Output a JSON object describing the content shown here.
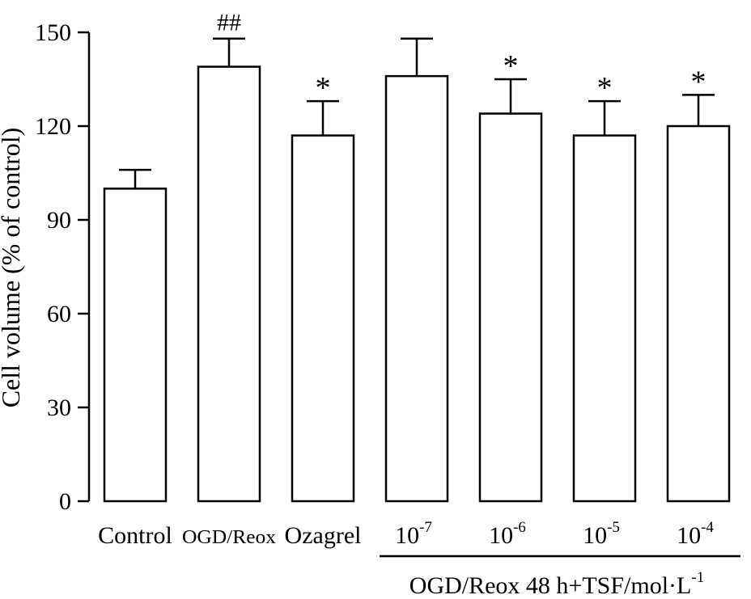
{
  "chart_data": {
    "type": "bar",
    "ylabel": "Cell volume (% of control)",
    "ylim": [
      0,
      150
    ],
    "yticks": [
      0,
      30,
      60,
      90,
      120,
      150
    ],
    "grid": false,
    "categories": [
      {
        "label": "Control",
        "base": "",
        "exp": ""
      },
      {
        "label": "OGD/Reox",
        "base": "",
        "exp": ""
      },
      {
        "label": "Ozagrel",
        "base": "",
        "exp": ""
      },
      {
        "label": "",
        "base": "10",
        "exp": "-7"
      },
      {
        "label": "",
        "base": "10",
        "exp": "-6"
      },
      {
        "label": "",
        "base": "10",
        "exp": "-5"
      },
      {
        "label": "",
        "base": "10",
        "exp": "-4"
      }
    ],
    "values": [
      100,
      139,
      117,
      136,
      124,
      117,
      120
    ],
    "errors": [
      6,
      9,
      11,
      12,
      11,
      11,
      10
    ],
    "significance": [
      "",
      "##",
      "*",
      "",
      "*",
      "*",
      "*"
    ],
    "group": {
      "label_main": "OGD/Reox 48 h+TSF/mol·L",
      "label_exp": "-1",
      "from_index": 3,
      "to_index": 6
    }
  }
}
